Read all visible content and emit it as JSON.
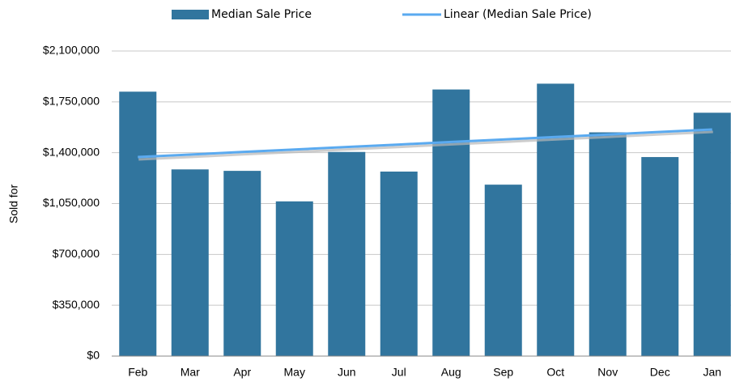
{
  "chart_data": {
    "type": "bar",
    "y_axis_label": "Sold for",
    "categories": [
      "Feb",
      "Mar",
      "Apr",
      "May",
      "Jun",
      "Jul",
      "Aug",
      "Sep",
      "Oct",
      "Nov",
      "Dec",
      "Jan"
    ],
    "series": [
      {
        "name": "Median Sale Price",
        "color": "#31759e",
        "type": "bar",
        "values": [
          1820000,
          1285000,
          1275000,
          1065000,
          1405000,
          1270000,
          1835000,
          1180000,
          1875000,
          1540000,
          1370000,
          1675000
        ]
      },
      {
        "name": "Linear (Median Sale Price)",
        "color": "#5aaaf0",
        "type": "line",
        "values": [
          1370000,
          1387000,
          1405000,
          1422000,
          1439000,
          1456000,
          1474000,
          1491000,
          1508000,
          1525000,
          1543000,
          1560000
        ]
      }
    ],
    "ylim": [
      0,
      2100000
    ],
    "yticks": [
      {
        "value": 0,
        "label": "$0"
      },
      {
        "value": 350000,
        "label": "$350,000"
      },
      {
        "value": 700000,
        "label": "$700,000"
      },
      {
        "value": 1050000,
        "label": "$1,050,000"
      },
      {
        "value": 1400000,
        "label": "$1,400,000"
      },
      {
        "value": 1750000,
        "label": "$1,750,000"
      },
      {
        "value": 2100000,
        "label": "$2,100,000"
      }
    ],
    "grid": true,
    "legend": "top"
  }
}
